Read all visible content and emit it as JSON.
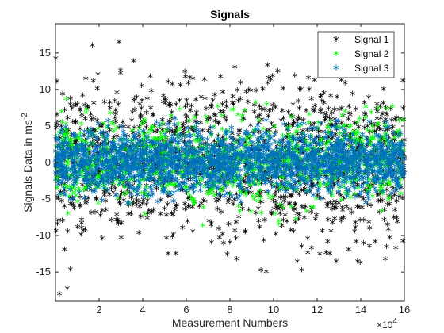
{
  "chart_data": {
    "type": "scatter",
    "title": "Signals",
    "xlabel": "Measurement Numbers",
    "ylabel": "Signals Data in ms",
    "ylabel_superscript": "-2",
    "x_exponent_base": "×10",
    "x_exponent_power": "4",
    "xlim": [
      0,
      16
    ],
    "ylim": [
      -19,
      19
    ],
    "x_ticks": [
      2,
      4,
      6,
      8,
      10,
      12,
      14,
      16
    ],
    "y_ticks": [
      -15,
      -10,
      -5,
      0,
      5,
      10,
      15
    ],
    "x_tick_labels": [
      "2",
      "4",
      "6",
      "8",
      "10",
      "12",
      "14",
      "16"
    ],
    "y_tick_labels": [
      "-15",
      "-10",
      "-5",
      "0",
      "5",
      "10",
      "15"
    ],
    "grid": false,
    "legend_position": "top-right",
    "marker": "*",
    "series": [
      {
        "name": "Signal 1",
        "color": "#000000",
        "approx_range": [
          -19,
          19
        ],
        "spread": 5.2
      },
      {
        "name": "Signal 2",
        "color": "#00ff00",
        "approx_range": [
          -9,
          9
        ],
        "spread": 2.9
      },
      {
        "name": "Signal 3",
        "color": "#0072bd",
        "approx_range": [
          -6,
          6
        ],
        "spread": 2.0
      }
    ]
  }
}
